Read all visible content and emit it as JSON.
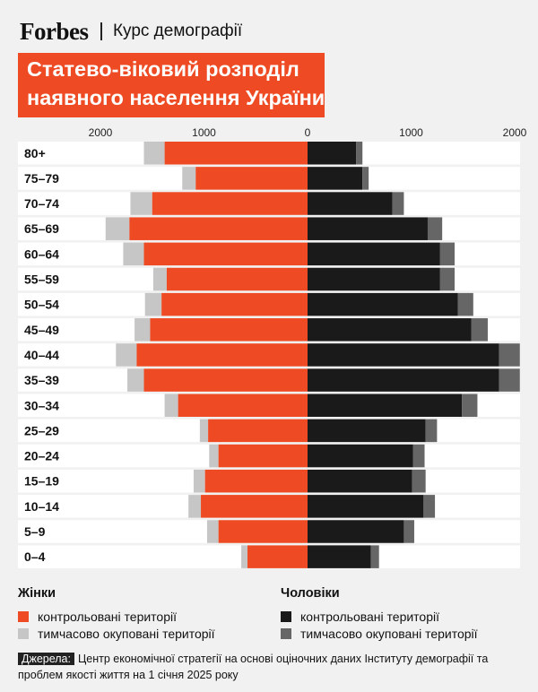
{
  "header": {
    "logo": "Forbes",
    "course": "Курс демографії"
  },
  "title": {
    "line1": "Статево-віковий розподіл",
    "line2": "наявного населення України"
  },
  "colors": {
    "women_controlled": "#ee4a23",
    "women_occupied": "#c6c6c6",
    "men_controlled": "#1a1a1a",
    "men_occupied": "#666666",
    "background_bar": "#ffffff"
  },
  "chart_data": {
    "type": "bar",
    "orientation": "horizontal-population-pyramid",
    "x_tick_labels": [
      "2000",
      "1000",
      "0",
      "1000",
      "2000"
    ],
    "categories": [
      "80+",
      "75–79",
      "70–74",
      "65–69",
      "60–64",
      "55–59",
      "50–54",
      "45–49",
      "40–44",
      "35–39",
      "30–34",
      "25–29",
      "20–24",
      "15–19",
      "10–14",
      "5–9",
      "0–4"
    ],
    "series": [
      {
        "name": "контрольовані території",
        "group": "Жінки",
        "values": [
          1380,
          1080,
          1500,
          1720,
          1580,
          1360,
          1410,
          1520,
          1650,
          1580,
          1250,
          960,
          860,
          990,
          1030,
          860,
          580
        ]
      },
      {
        "name": "тимчасово окуповані території",
        "group": "Жінки",
        "values": [
          200,
          130,
          210,
          230,
          200,
          130,
          160,
          150,
          200,
          160,
          130,
          80,
          90,
          110,
          120,
          110,
          60
        ]
      },
      {
        "name": "контрольовані території",
        "group": "Чоловіки",
        "values": [
          470,
          530,
          820,
          1160,
          1280,
          1280,
          1450,
          1580,
          1850,
          1850,
          1490,
          1140,
          1020,
          1010,
          1120,
          930,
          610
        ]
      },
      {
        "name": "тимчасово окуповані території",
        "group": "Чоловіки",
        "values": [
          60,
          60,
          110,
          140,
          140,
          140,
          150,
          160,
          200,
          200,
          150,
          110,
          110,
          130,
          110,
          100,
          80
        ]
      }
    ],
    "legend_placement": "bottom",
    "grid": false
  },
  "legend": {
    "women": {
      "heading": "Жінки",
      "controlled": "контрольовані території",
      "occupied": "тимчасово окуповані території"
    },
    "men": {
      "heading": "Чоловіки",
      "controlled": "контрольовані території",
      "occupied": "тимчасово окуповані території"
    }
  },
  "source": {
    "label": "Джерела:",
    "text": "Центр економічної стратегії на основі оціночних даних Інституту демографії та проблем якості життя на 1 січня 2025 року"
  }
}
